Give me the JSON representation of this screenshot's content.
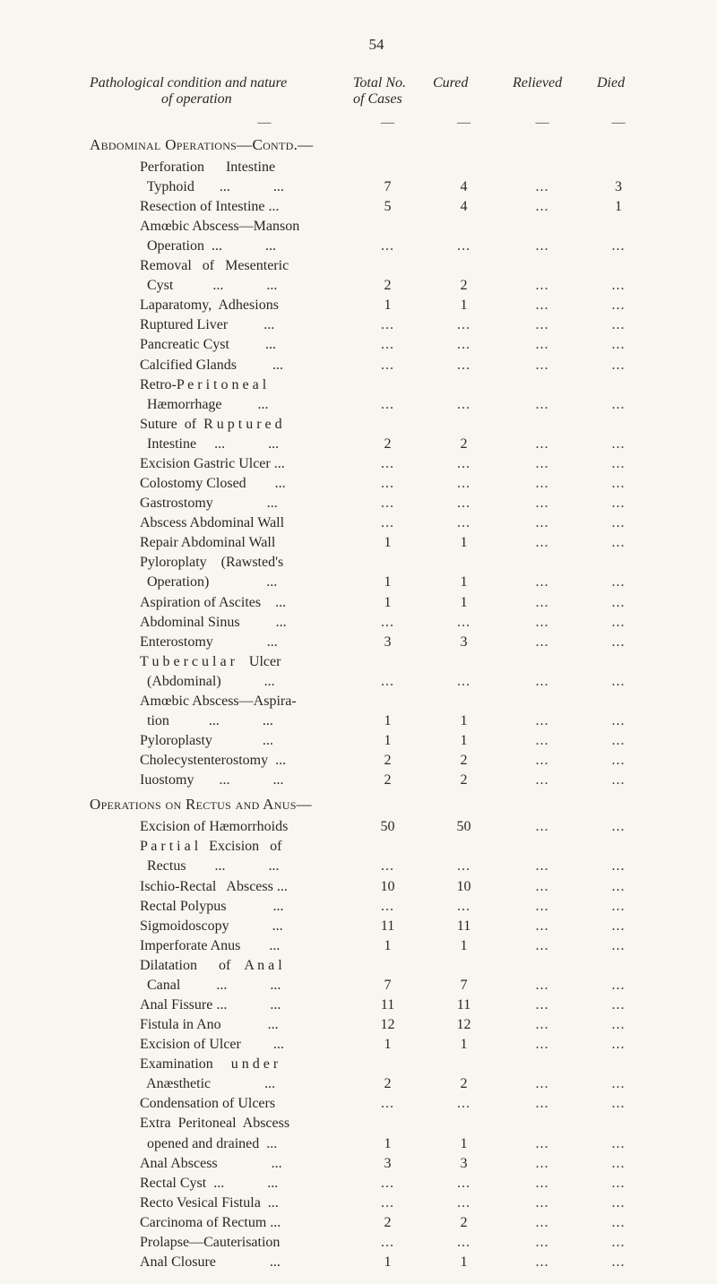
{
  "page_number": "54",
  "header": {
    "col0_line1": "Pathological condition and nature",
    "col0_line2": "of operation",
    "col1_line1": "Total No.",
    "col1_line2": "of Cases",
    "col2": "Cured",
    "col3": "Relieved",
    "col4": "Died"
  },
  "dash": "—",
  "sections": [
    {
      "title": "Abdominal Operations—Contd.—",
      "rows": [
        {
          "label_lines": [
            "Perforation      Intestine",
            "  Typhoid       ...            ..."
          ],
          "c1": "7",
          "c2": "4",
          "c3": "...",
          "c4": "3"
        },
        {
          "label_lines": [
            "Resection of Intestine ..."
          ],
          "c1": "5",
          "c2": "4",
          "c3": "...",
          "c4": "1"
        },
        {
          "label_lines": [
            "Amœbic Abscess—Manson",
            "  Operation  ...            ..."
          ],
          "c1": "...",
          "c2": "...",
          "c3": "...",
          "c4": "..."
        },
        {
          "label_lines": [
            "Removal   of   Mesenteric",
            "  Cyst           ...            ..."
          ],
          "c1": "2",
          "c2": "2",
          "c3": "...",
          "c4": "..."
        },
        {
          "label_lines": [
            "Laparatomy,  Adhesions"
          ],
          "c1": "1",
          "c2": "1",
          "c3": "...",
          "c4": "..."
        },
        {
          "label_lines": [
            "Ruptured Liver          ..."
          ],
          "c1": "...",
          "c2": "...",
          "c3": "...",
          "c4": "..."
        },
        {
          "label_lines": [
            "Pancreatic Cyst          ..."
          ],
          "c1": "...",
          "c2": "...",
          "c3": "...",
          "c4": "..."
        },
        {
          "label_lines": [
            "Calcified Glands          ..."
          ],
          "c1": "...",
          "c2": "...",
          "c3": "...",
          "c4": "..."
        },
        {
          "label_lines": [
            "Retro-P e r i t o n e a l",
            "  Hæmorrhage          ..."
          ],
          "c1": "...",
          "c2": "...",
          "c3": "...",
          "c4": "..."
        },
        {
          "label_lines": [
            "Suture  of  R u p t u r e d",
            "  Intestine     ...            ..."
          ],
          "c1": "2",
          "c2": "2",
          "c3": "...",
          "c4": "..."
        },
        {
          "label_lines": [
            "Excision Gastric Ulcer ..."
          ],
          "c1": "...",
          "c2": "...",
          "c3": "...",
          "c4": "..."
        },
        {
          "label_lines": [
            "Colostomy Closed        ..."
          ],
          "c1": "...",
          "c2": "...",
          "c3": "...",
          "c4": "..."
        },
        {
          "label_lines": [
            "Gastrostomy               ..."
          ],
          "c1": "...",
          "c2": "...",
          "c3": "...",
          "c4": "..."
        },
        {
          "label_lines": [
            "Abscess Abdominal Wall"
          ],
          "c1": "...",
          "c2": "...",
          "c3": "...",
          "c4": "..."
        },
        {
          "label_lines": [
            "Repair Abdominal Wall"
          ],
          "c1": "1",
          "c2": "1",
          "c3": "...",
          "c4": "..."
        },
        {
          "label_lines": [
            "Pyloroplaty    (Rawsted's",
            "  Operation)                ..."
          ],
          "c1": "1",
          "c2": "1",
          "c3": "...",
          "c4": "..."
        },
        {
          "label_lines": [
            "Aspiration of Ascites    ..."
          ],
          "c1": "1",
          "c2": "1",
          "c3": "...",
          "c4": "..."
        },
        {
          "label_lines": [
            "Abdominal Sinus          ..."
          ],
          "c1": "...",
          "c2": "...",
          "c3": "...",
          "c4": "..."
        },
        {
          "label_lines": [
            "Enterostomy               ..."
          ],
          "c1": "3",
          "c2": "3",
          "c3": "...",
          "c4": "..."
        },
        {
          "label_lines": [
            "T u b e r c u l a r    Ulcer",
            "  (Abdominal)            ..."
          ],
          "c1": "...",
          "c2": "...",
          "c3": "...",
          "c4": "..."
        },
        {
          "label_lines": [
            "Amœbic Abscess—Aspira-",
            "  tion           ...            ..."
          ],
          "c1": "1",
          "c2": "1",
          "c3": "...",
          "c4": "..."
        },
        {
          "label_lines": [
            "Pyloroplasty              ..."
          ],
          "c1": "1",
          "c2": "1",
          "c3": "...",
          "c4": "..."
        },
        {
          "label_lines": [
            "Cholecystenterostomy  ..."
          ],
          "c1": "2",
          "c2": "2",
          "c3": "...",
          "c4": "..."
        },
        {
          "label_lines": [
            "Iuostomy       ...            ..."
          ],
          "c1": "2",
          "c2": "2",
          "c3": "...",
          "c4": "..."
        }
      ]
    },
    {
      "title": "Operations on Rectus and Anus—",
      "rows": [
        {
          "label_lines": [
            "Excision of Hæmorrhoids"
          ],
          "c1": "50",
          "c2": "50",
          "c3": "...",
          "c4": "..."
        },
        {
          "label_lines": [
            "P a r t i a l   Excision   of",
            "  Rectus        ...            ..."
          ],
          "c1": "...",
          "c2": "...",
          "c3": "...",
          "c4": "..."
        },
        {
          "label_lines": [
            "Ischio-Rectal   Abscess ..."
          ],
          "c1": "10",
          "c2": "10",
          "c3": "...",
          "c4": "..."
        },
        {
          "label_lines": [
            "Rectal Polypus             ..."
          ],
          "c1": "...",
          "c2": "...",
          "c3": "...",
          "c4": "..."
        },
        {
          "label_lines": [
            "Sigmoidoscopy            ..."
          ],
          "c1": "11",
          "c2": "11",
          "c3": "...",
          "c4": "..."
        },
        {
          "label_lines": [
            "Imperforate Anus        ..."
          ],
          "c1": "1",
          "c2": "1",
          "c3": "...",
          "c4": "..."
        },
        {
          "label_lines": [
            "Dilatation      of    A n a l",
            "  Canal          ...            ..."
          ],
          "c1": "7",
          "c2": "7",
          "c3": "...",
          "c4": "..."
        },
        {
          "label_lines": [
            "Anal Fissure ...            ..."
          ],
          "c1": "11",
          "c2": "11",
          "c3": "...",
          "c4": "..."
        },
        {
          "label_lines": [
            "Fistula in Ano             ..."
          ],
          "c1": "12",
          "c2": "12",
          "c3": "...",
          "c4": "..."
        },
        {
          "label_lines": [
            "Excision of Ulcer         ..."
          ],
          "c1": "1",
          "c2": "1",
          "c3": "...",
          "c4": "..."
        },
        {
          "label_lines": [
            "Examination     u n d e r",
            "  Anæsthetic               ..."
          ],
          "c1": "2",
          "c2": "2",
          "c3": "...",
          "c4": "..."
        },
        {
          "label_lines": [
            "Condensation of Ulcers"
          ],
          "c1": "...",
          "c2": "...",
          "c3": "...",
          "c4": "..."
        },
        {
          "label_lines": [
            "Extra  Peritoneal  Abscess",
            "  opened and drained  ..."
          ],
          "c1": "1",
          "c2": "1",
          "c3": "...",
          "c4": "..."
        },
        {
          "label_lines": [
            "Anal Abscess               ..."
          ],
          "c1": "3",
          "c2": "3",
          "c3": "...",
          "c4": "..."
        },
        {
          "label_lines": [
            "Rectal Cyst  ...            ..."
          ],
          "c1": "...",
          "c2": "...",
          "c3": "...",
          "c4": "..."
        },
        {
          "label_lines": [
            "Recto Vesical Fistula  ..."
          ],
          "c1": "...",
          "c2": "...",
          "c3": "...",
          "c4": "..."
        },
        {
          "label_lines": [
            "Carcinoma of Rectum ..."
          ],
          "c1": "2",
          "c2": "2",
          "c3": "...",
          "c4": "..."
        },
        {
          "label_lines": [
            "Prolapse—Cauterisation"
          ],
          "c1": "...",
          "c2": "...",
          "c3": "...",
          "c4": "..."
        },
        {
          "label_lines": [
            "Anal Closure               ..."
          ],
          "c1": "1",
          "c2": "1",
          "c3": "...",
          "c4": "..."
        }
      ]
    }
  ]
}
